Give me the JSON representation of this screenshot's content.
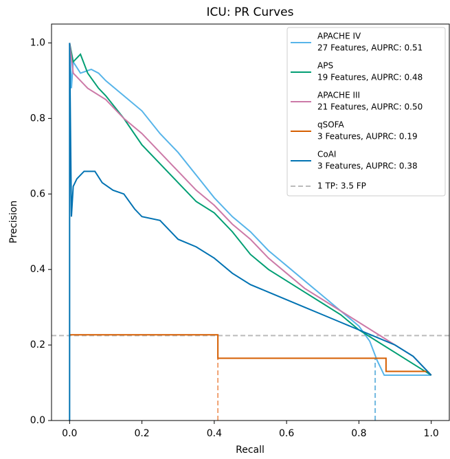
{
  "chart_data": {
    "type": "line",
    "title": "ICU: PR Curves",
    "x_label": "Recall",
    "y_label": "Precision",
    "xlim": [
      -0.05,
      1.05
    ],
    "ylim": [
      0,
      1.05
    ],
    "xticks": [
      {
        "value": 0,
        "label": "0.0"
      },
      {
        "value": 0.2,
        "label": "0.2"
      },
      {
        "value": 0.4,
        "label": "0.4"
      },
      {
        "value": 0.6,
        "label": "0.6"
      },
      {
        "value": 0.8,
        "label": "0.8"
      },
      {
        "value": 1,
        "label": "1.0"
      }
    ],
    "yticks": [
      {
        "value": 0,
        "label": "0.0"
      },
      {
        "value": 0.2,
        "label": "0.2"
      },
      {
        "value": 0.4,
        "label": "0.4"
      },
      {
        "value": 0.6,
        "label": "0.6"
      },
      {
        "value": 0.8,
        "label": "0.8"
      },
      {
        "value": 1,
        "label": "1.0"
      }
    ],
    "legend": "upper right",
    "series": [
      {
        "name": "APACHE IV",
        "detail": "27 Features,  AUPRC: 0.51",
        "color": "#56b4e9",
        "x": [
          0,
          0.005,
          0.01,
          0.03,
          0.06,
          0.08,
          0.1,
          0.15,
          0.2,
          0.25,
          0.3,
          0.35,
          0.4,
          0.45,
          0.5,
          0.55,
          0.6,
          0.65,
          0.7,
          0.75,
          0.8,
          0.83,
          0.85,
          0.87,
          0.95,
          1.0
        ],
        "values": [
          1.0,
          0.88,
          0.95,
          0.92,
          0.93,
          0.92,
          0.9,
          0.86,
          0.82,
          0.76,
          0.71,
          0.65,
          0.59,
          0.54,
          0.5,
          0.45,
          0.41,
          0.37,
          0.33,
          0.29,
          0.25,
          0.21,
          0.16,
          0.12,
          0.12,
          0.12
        ]
      },
      {
        "name": "APS",
        "detail": "19 Features,  AUPRC: 0.48",
        "color": "#009e73",
        "x": [
          0,
          0.01,
          0.03,
          0.05,
          0.08,
          0.1,
          0.15,
          0.2,
          0.25,
          0.3,
          0.35,
          0.4,
          0.45,
          0.5,
          0.55,
          0.6,
          0.65,
          0.7,
          0.75,
          0.8,
          0.85,
          0.9,
          0.95,
          1.0
        ],
        "values": [
          1.0,
          0.95,
          0.97,
          0.92,
          0.88,
          0.86,
          0.8,
          0.73,
          0.68,
          0.63,
          0.58,
          0.55,
          0.5,
          0.44,
          0.4,
          0.37,
          0.34,
          0.31,
          0.28,
          0.24,
          0.21,
          0.18,
          0.15,
          0.12
        ]
      },
      {
        "name": "APACHE III",
        "detail": "21 Features,  AUPRC: 0.50",
        "color": "#cc79a7",
        "x": [
          0,
          0.01,
          0.03,
          0.05,
          0.1,
          0.15,
          0.2,
          0.25,
          0.3,
          0.35,
          0.4,
          0.45,
          0.5,
          0.55,
          0.6,
          0.65,
          0.7,
          0.75,
          0.8,
          0.85,
          0.9,
          0.95,
          1.0
        ],
        "values": [
          1.0,
          0.92,
          0.9,
          0.88,
          0.85,
          0.8,
          0.76,
          0.71,
          0.66,
          0.61,
          0.57,
          0.52,
          0.48,
          0.43,
          0.39,
          0.35,
          0.32,
          0.29,
          0.26,
          0.23,
          0.2,
          0.17,
          0.12
        ]
      },
      {
        "name": "qSOFA",
        "detail": "3 Features,  AUPRC: 0.19",
        "color": "#d55e00",
        "x": [
          0,
          0.41,
          0.41,
          0.875,
          0.875,
          0.99,
          1.0
        ],
        "values": [
          0.227,
          0.227,
          0.165,
          0.165,
          0.13,
          0.13,
          0.12
        ]
      },
      {
        "name": "CoAI",
        "detail": "3 Features,  AUPRC: 0.38",
        "color": "#0072b2",
        "x": [
          0,
          0,
          0.005,
          0.01,
          0.02,
          0.04,
          0.07,
          0.09,
          0.12,
          0.15,
          0.18,
          0.2,
          0.25,
          0.3,
          0.35,
          0.4,
          0.45,
          0.5,
          0.55,
          0.6,
          0.65,
          0.7,
          0.75,
          0.8,
          0.85,
          0.9,
          0.95,
          1.0
        ],
        "values": [
          0,
          1.0,
          0.54,
          0.62,
          0.64,
          0.66,
          0.66,
          0.63,
          0.61,
          0.6,
          0.56,
          0.54,
          0.53,
          0.48,
          0.46,
          0.43,
          0.39,
          0.36,
          0.34,
          0.32,
          0.3,
          0.28,
          0.26,
          0.24,
          0.22,
          0.2,
          0.17,
          0.12
        ]
      }
    ],
    "reference_line": {
      "label": "1 TP: 3.5 FP",
      "y": 0.225,
      "color": "#bbbbbb"
    },
    "threshold_lines": [
      {
        "x": 0.41,
        "y": 0.165,
        "color": "#f0a070"
      },
      {
        "x": 0.845,
        "y": 0.165,
        "color": "#6fb8e0"
      }
    ]
  }
}
